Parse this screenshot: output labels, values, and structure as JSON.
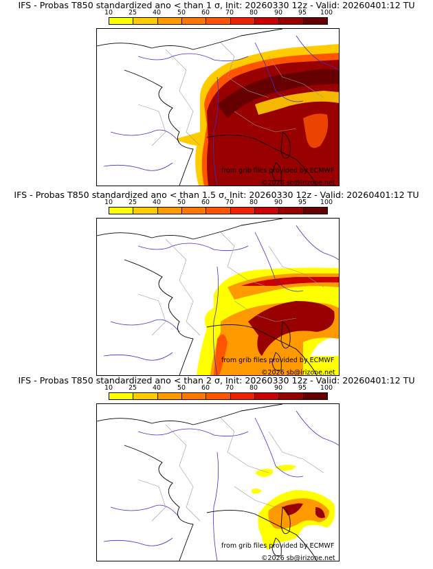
{
  "colorbar": {
    "levels": [
      "10",
      "25",
      "40",
      "50",
      "60",
      "70",
      "80",
      "90",
      "95",
      "100"
    ],
    "colors": [
      "#ffff00",
      "#ffcc00",
      "#ff9900",
      "#ff7700",
      "#ff5500",
      "#ee2200",
      "#cc0000",
      "#990000",
      "#660000"
    ]
  },
  "panels": [
    {
      "title": "IFS - Probas T850  standardized ano < than 1 σ, Init: 20260330 12z - Valid: 20260401:12 TU",
      "credit_source": "from grib files provided by ECMWF",
      "credit_copyright": "©2026 sb@irizone.net"
    },
    {
      "title": "IFS - Probas T850  standardized ano < than 1.5 σ, Init: 20260330 12z - Valid: 20260401:12 TU",
      "credit_source": "from grib files provided by ECMWF",
      "credit_copyright": "©2026 sb@irizone.net"
    },
    {
      "title": "IFS - Probas T850  standardized ano < than 2 σ, Init: 20260330 12z - Valid: 20260401:12 TU",
      "credit_source": "from grib files provided by ECMWF",
      "credit_copyright": "©2026 sb@irizone.net"
    }
  ],
  "map_colors": {
    "coast": "#000000",
    "rivers": "#3333cc",
    "borders": "#999999",
    "land": "#ffffff"
  }
}
